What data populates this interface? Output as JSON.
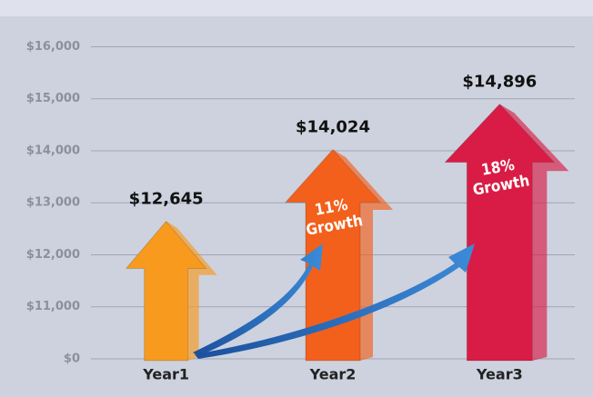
{
  "chart_data": {
    "type": "arrow-bar",
    "categories": [
      "Year1",
      "Year2",
      "Year3"
    ],
    "values": [
      12645,
      14024,
      14896
    ],
    "value_labels": [
      "$12,645",
      "$14,024",
      "$14,896"
    ],
    "colors": [
      "#f79a1e",
      "#f2601c",
      "#d91c45"
    ],
    "ylim": [
      0,
      16200
    ],
    "y_break": [
      0,
      10000
    ],
    "yticks": [
      {
        "value": 0,
        "label": "$0"
      },
      {
        "value": 11000,
        "label": "$11,000"
      },
      {
        "value": 12000,
        "label": "$12,000"
      },
      {
        "value": 13000,
        "label": "$13,000"
      },
      {
        "value": 14000,
        "label": "$14,000"
      },
      {
        "value": 15000,
        "label": "$15,000"
      },
      {
        "value": 16000,
        "label": "$16,000"
      }
    ],
    "grid": true,
    "annotations": [
      {
        "lines": [
          "11%",
          "Growth"
        ]
      },
      {
        "lines": [
          "18%",
          "Growth"
        ]
      }
    ]
  }
}
